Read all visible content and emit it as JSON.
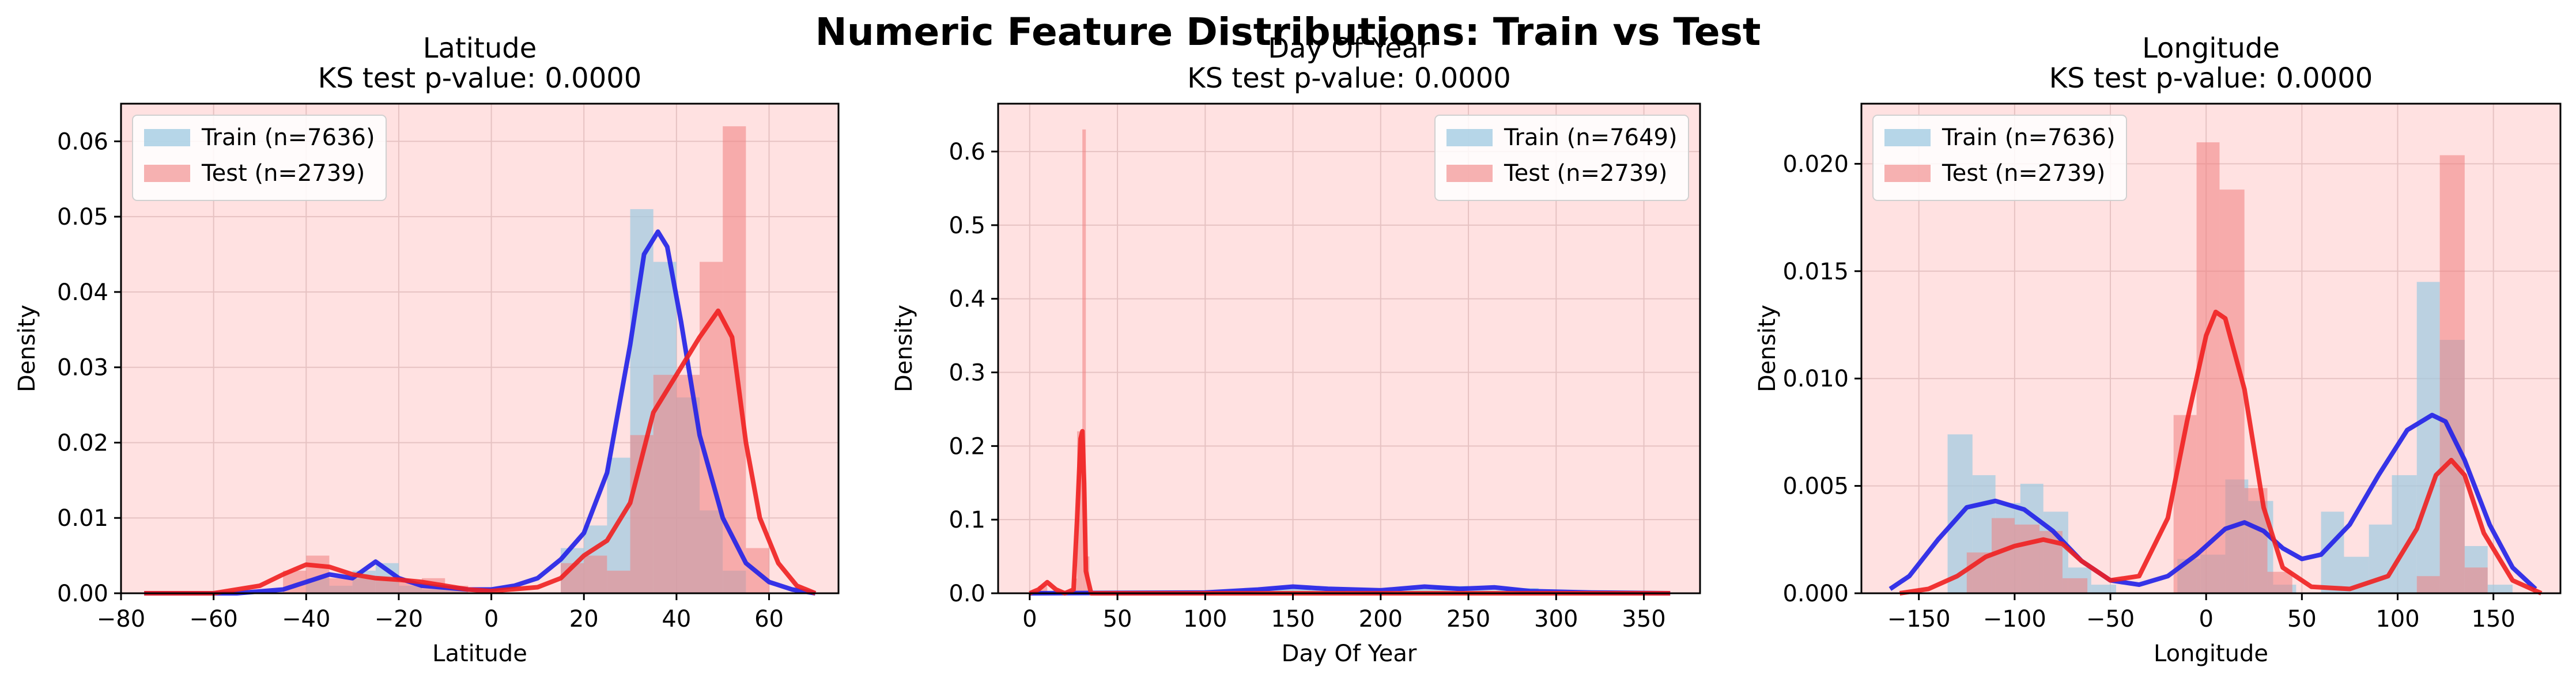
{
  "figure": {
    "suptitle": "Numeric Feature Distributions: Train vs Test",
    "colors": {
      "bg": "#ffe1e1",
      "grid": "#e6c2c2",
      "train_fill": "#9ecae1",
      "test_fill": "#f08080",
      "train_line": "#2020e8",
      "test_line": "#f02020"
    }
  },
  "chart_data": [
    {
      "type": "histogram_kde",
      "title_line1": "Latitude",
      "title_line2": "KS test p-value: 0.0000",
      "xlabel": "Latitude",
      "ylabel": "Density",
      "xlim": [
        -80,
        75
      ],
      "ylim": [
        0,
        0.065
      ],
      "xticks": [
        -80,
        -60,
        -40,
        -20,
        0,
        20,
        40,
        60
      ],
      "yticks": [
        0.0,
        0.01,
        0.02,
        0.03,
        0.04,
        0.05,
        0.06
      ],
      "ytick_labels": [
        "0.00",
        "0.01",
        "0.02",
        "0.03",
        "0.04",
        "0.05",
        "0.06"
      ],
      "legend_position": "upper-left",
      "series": [
        {
          "name": "Train (n=7636)",
          "hist": [
            [
              -40,
              -35,
              0.002
            ],
            [
              -35,
              -30,
              0.001
            ],
            [
              -30,
              -25,
              0.003
            ],
            [
              -25,
              -20,
              0.004
            ],
            [
              -20,
              -15,
              0.001
            ],
            [
              -15,
              -10,
              0.0005
            ],
            [
              -10,
              -5,
              0.0005
            ],
            [
              15,
              20,
              0.006
            ],
            [
              20,
              25,
              0.009
            ],
            [
              25,
              30,
              0.018
            ],
            [
              30,
              35,
              0.051
            ],
            [
              35,
              40,
              0.044
            ],
            [
              40,
              45,
              0.026
            ],
            [
              45,
              50,
              0.011
            ],
            [
              50,
              55,
              0.003
            ]
          ],
          "kde": [
            [
              -75,
              0
            ],
            [
              -55,
              0
            ],
            [
              -45,
              0.0005
            ],
            [
              -40,
              0.0015
            ],
            [
              -35,
              0.0025
            ],
            [
              -30,
              0.002
            ],
            [
              -25,
              0.0042
            ],
            [
              -20,
              0.002
            ],
            [
              -15,
              0.001
            ],
            [
              -5,
              0.0005
            ],
            [
              0,
              0.0005
            ],
            [
              5,
              0.001
            ],
            [
              10,
              0.002
            ],
            [
              15,
              0.0045
            ],
            [
              20,
              0.008
            ],
            [
              25,
              0.016
            ],
            [
              30,
              0.033
            ],
            [
              33,
              0.045
            ],
            [
              36,
              0.048
            ],
            [
              38,
              0.046
            ],
            [
              41,
              0.036
            ],
            [
              45,
              0.021
            ],
            [
              50,
              0.01
            ],
            [
              55,
              0.004
            ],
            [
              60,
              0.0015
            ],
            [
              65,
              0.0005
            ],
            [
              70,
              0
            ]
          ]
        },
        {
          "name": "Test (n=2739)",
          "hist": [
            [
              -45,
              -40,
              0.003
            ],
            [
              -40,
              -35,
              0.005
            ],
            [
              -35,
              -30,
              0.002
            ],
            [
              -30,
              -25,
              0.002
            ],
            [
              -25,
              -20,
              0.002
            ],
            [
              -20,
              -15,
              0.0015
            ],
            [
              -15,
              -10,
              0.002
            ],
            [
              -10,
              -5,
              0.001
            ],
            [
              15,
              20,
              0.004
            ],
            [
              20,
              25,
              0.005
            ],
            [
              25,
              30,
              0.003
            ],
            [
              30,
              35,
              0.021
            ],
            [
              35,
              40,
              0.029
            ],
            [
              40,
              45,
              0.029
            ],
            [
              45,
              50,
              0.044
            ],
            [
              50,
              55,
              0.062
            ],
            [
              55,
              60,
              0.006
            ]
          ],
          "kde": [
            [
              -75,
              0
            ],
            [
              -60,
              0
            ],
            [
              -50,
              0.001
            ],
            [
              -45,
              0.0025
            ],
            [
              -40,
              0.0038
            ],
            [
              -35,
              0.0035
            ],
            [
              -30,
              0.0025
            ],
            [
              -25,
              0.002
            ],
            [
              -20,
              0.0018
            ],
            [
              -15,
              0.0015
            ],
            [
              -10,
              0.001
            ],
            [
              -5,
              0.0005
            ],
            [
              0,
              0.0003
            ],
            [
              10,
              0.0008
            ],
            [
              15,
              0.002
            ],
            [
              20,
              0.005
            ],
            [
              25,
              0.007
            ],
            [
              30,
              0.012
            ],
            [
              35,
              0.024
            ],
            [
              40,
              0.029
            ],
            [
              45,
              0.034
            ],
            [
              49,
              0.0375
            ],
            [
              52,
              0.034
            ],
            [
              55,
              0.02
            ],
            [
              58,
              0.01
            ],
            [
              62,
              0.004
            ],
            [
              66,
              0.001
            ],
            [
              70,
              0
            ]
          ]
        }
      ]
    },
    {
      "type": "histogram_kde",
      "title_line1": "Day Of Year",
      "title_line2": "KS test p-value: 0.0000",
      "xlabel": "Day Of Year",
      "ylabel": "Density",
      "xlim": [
        -18,
        382
      ],
      "ylim": [
        0,
        0.665
      ],
      "xticks": [
        0,
        50,
        100,
        150,
        200,
        250,
        300,
        350
      ],
      "yticks": [
        0.0,
        0.1,
        0.2,
        0.3,
        0.4,
        0.5,
        0.6
      ],
      "ytick_labels": [
        "0.0",
        "0.1",
        "0.2",
        "0.3",
        "0.4",
        "0.5",
        "0.6"
      ],
      "legend_position": "upper-right",
      "series": [
        {
          "name": "Train (n=7649)",
          "hist": [
            [
              120,
              140,
              0.005
            ],
            [
              140,
              160,
              0.008
            ],
            [
              160,
              180,
              0.004
            ],
            [
              210,
              230,
              0.006
            ],
            [
              230,
              250,
              0.01
            ],
            [
              250,
              270,
              0.004
            ],
            [
              270,
              290,
              0.007
            ]
          ],
          "kde": [
            [
              0,
              0
            ],
            [
              100,
              0.001
            ],
            [
              130,
              0.005
            ],
            [
              150,
              0.009
            ],
            [
              170,
              0.006
            ],
            [
              200,
              0.004
            ],
            [
              225,
              0.009
            ],
            [
              245,
              0.006
            ],
            [
              265,
              0.008
            ],
            [
              285,
              0.003
            ],
            [
              320,
              0.001
            ],
            [
              365,
              0
            ]
          ]
        },
        {
          "name": "Test (n=2739)",
          "hist": [
            [
              5,
              10,
              0.01
            ],
            [
              25,
              27,
              0.02
            ],
            [
              27,
              30,
              0.22
            ],
            [
              30,
              32,
              0.63
            ],
            [
              32,
              34,
              0.05
            ]
          ],
          "kde": [
            [
              0,
              0
            ],
            [
              5,
              0.005
            ],
            [
              10,
              0.015
            ],
            [
              15,
              0.005
            ],
            [
              20,
              0
            ],
            [
              25,
              0.005
            ],
            [
              27,
              0.1
            ],
            [
              29,
              0.21
            ],
            [
              30,
              0.22
            ],
            [
              31,
              0.15
            ],
            [
              32,
              0.03
            ],
            [
              35,
              0
            ],
            [
              365,
              0
            ]
          ]
        }
      ]
    },
    {
      "type": "histogram_kde",
      "title_line1": "Longitude",
      "title_line2": "KS test p-value: 0.0000",
      "xlabel": "Longitude",
      "ylabel": "Density",
      "xlim": [
        -180,
        185
      ],
      "ylim": [
        0,
        0.0228
      ],
      "xticks": [
        -150,
        -100,
        -50,
        0,
        50,
        100,
        150
      ],
      "yticks": [
        0.0,
        0.005,
        0.01,
        0.015,
        0.02
      ],
      "ytick_labels": [
        "0.000",
        "0.005",
        "0.010",
        "0.015",
        "0.020"
      ],
      "legend_position": "upper-left",
      "series": [
        {
          "name": "Train (n=7636)",
          "hist": [
            [
              -135,
              -122,
              0.0074
            ],
            [
              -122,
              -110,
              0.0055
            ],
            [
              -110,
              -97,
              0.0042
            ],
            [
              -97,
              -85,
              0.0051
            ],
            [
              -85,
              -72,
              0.0038
            ],
            [
              -72,
              -60,
              0.0012
            ],
            [
              -60,
              -47,
              0.0004
            ],
            [
              -15,
              -3,
              0.0016
            ],
            [
              -3,
              10,
              0.0018
            ],
            [
              10,
              22,
              0.0053
            ],
            [
              22,
              35,
              0.0043
            ],
            [
              35,
              47,
              0.0004
            ],
            [
              60,
              72,
              0.0038
            ],
            [
              72,
              85,
              0.0017
            ],
            [
              85,
              97,
              0.0032
            ],
            [
              97,
              110,
              0.0055
            ],
            [
              110,
              122,
              0.0145
            ],
            [
              122,
              135,
              0.0118
            ],
            [
              135,
              147,
              0.0022
            ],
            [
              147,
              160,
              0.0004
            ]
          ],
          "kde": [
            [
              -165,
              0.0002
            ],
            [
              -155,
              0.0008
            ],
            [
              -140,
              0.0025
            ],
            [
              -125,
              0.004
            ],
            [
              -110,
              0.0043
            ],
            [
              -95,
              0.0039
            ],
            [
              -80,
              0.0029
            ],
            [
              -65,
              0.0015
            ],
            [
              -50,
              0.0006
            ],
            [
              -35,
              0.0004
            ],
            [
              -20,
              0.0008
            ],
            [
              -5,
              0.0018
            ],
            [
              10,
              0.003
            ],
            [
              20,
              0.0033
            ],
            [
              30,
              0.0029
            ],
            [
              40,
              0.0021
            ],
            [
              50,
              0.0016
            ],
            [
              60,
              0.0018
            ],
            [
              75,
              0.0032
            ],
            [
              90,
              0.0055
            ],
            [
              105,
              0.0076
            ],
            [
              118,
              0.0083
            ],
            [
              125,
              0.008
            ],
            [
              135,
              0.0062
            ],
            [
              148,
              0.0032
            ],
            [
              160,
              0.0012
            ],
            [
              172,
              0.0002
            ]
          ]
        },
        {
          "name": "Test (n=2739)",
          "hist": [
            [
              -125,
              -112,
              0.0019
            ],
            [
              -112,
              -100,
              0.0035
            ],
            [
              -100,
              -87,
              0.0032
            ],
            [
              -87,
              -75,
              0.0029
            ],
            [
              -75,
              -62,
              0.0007
            ],
            [
              -17,
              -5,
              0.0083
            ],
            [
              -5,
              7,
              0.021
            ],
            [
              7,
              20,
              0.0188
            ],
            [
              20,
              32,
              0.0049
            ],
            [
              32,
              45,
              0.001
            ],
            [
              110,
              122,
              0.0008
            ],
            [
              122,
              135,
              0.0204
            ],
            [
              135,
              147,
              0.0012
            ]
          ],
          "kde": [
            [
              -160,
              0
            ],
            [
              -145,
              0.0002
            ],
            [
              -130,
              0.0008
            ],
            [
              -115,
              0.0017
            ],
            [
              -100,
              0.0022
            ],
            [
              -85,
              0.0025
            ],
            [
              -75,
              0.0023
            ],
            [
              -65,
              0.0015
            ],
            [
              -50,
              0.0006
            ],
            [
              -35,
              0.0008
            ],
            [
              -20,
              0.0035
            ],
            [
              -10,
              0.008
            ],
            [
              0,
              0.012
            ],
            [
              5,
              0.0131
            ],
            [
              10,
              0.0128
            ],
            [
              20,
              0.0095
            ],
            [
              30,
              0.004
            ],
            [
              40,
              0.0012
            ],
            [
              55,
              0.0003
            ],
            [
              75,
              0.0002
            ],
            [
              95,
              0.0008
            ],
            [
              110,
              0.003
            ],
            [
              120,
              0.0055
            ],
            [
              128,
              0.0062
            ],
            [
              135,
              0.0055
            ],
            [
              145,
              0.0028
            ],
            [
              160,
              0.0006
            ],
            [
              175,
              0
            ]
          ]
        }
      ]
    }
  ]
}
